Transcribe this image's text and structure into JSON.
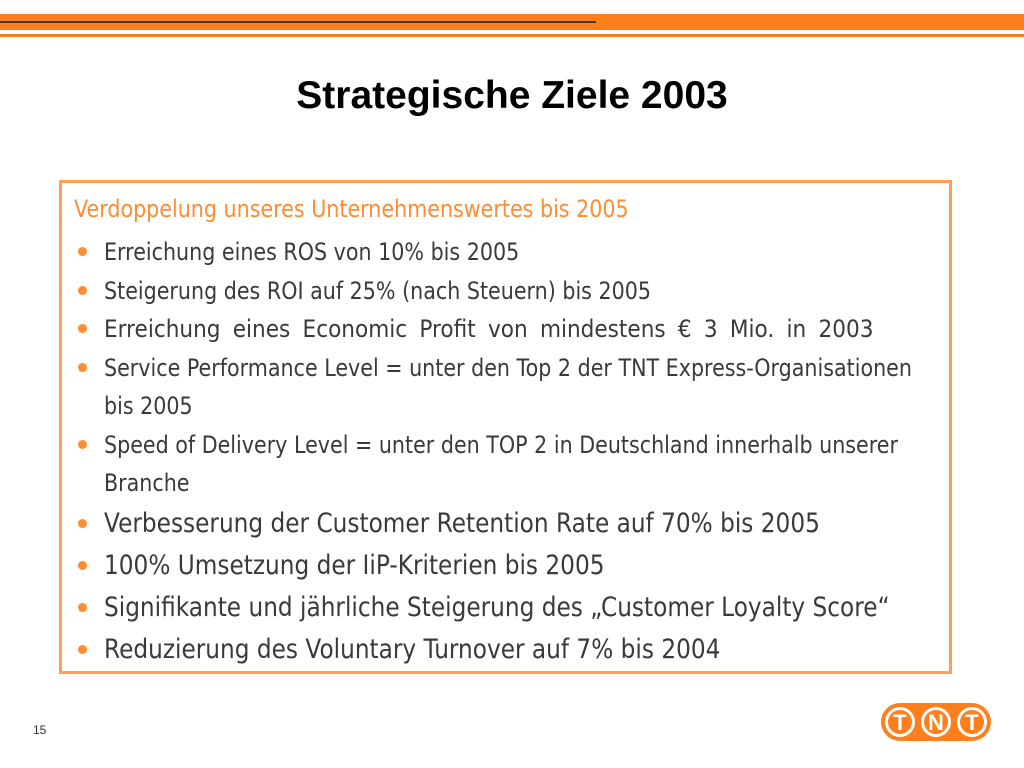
{
  "slide": {
    "title": "Strategische Ziele 2003",
    "page_number": "15"
  },
  "box": {
    "heading": "Verdoppelung unseres Unternehmenswertes bis 2005",
    "bullets": [
      {
        "line1": "Erreichung eines ROS von 10% bis 2005"
      },
      {
        "line1": "Steigerung des ROI auf 25% (nach Steuern) bis 2005"
      },
      {
        "line1": "Erreichung eines Economic Profit von mindestens € 3 Mio. in 2003"
      },
      {
        "line1": "Service Performance Level = unter den Top 2 der TNT Express-Organisationen",
        "line2": "bis 2005"
      },
      {
        "line1": "Speed of Delivery  Level = unter den TOP 2 in Deutschland innerhalb unserer",
        "line2": "Branche"
      },
      {
        "line1": "Verbesserung der Customer Retention Rate auf 70% bis 2005"
      },
      {
        "line1": "100% Umsetzung der IiP-Kriterien bis 2005"
      },
      {
        "line1": "Signifikante und jährliche Steigerung des „Customer Loyalty Score“"
      },
      {
        "line1": "Reduzierung des Voluntary Turnover auf 7% bis 2004"
      }
    ]
  },
  "logo": {
    "letters": [
      "T",
      "N",
      "T"
    ],
    "icon": "tnt-logo"
  },
  "colors": {
    "accent_orange": "#ff7f1f",
    "box_border": "#ff9f50",
    "heading_orange": "#ff8c32",
    "body_text": "#3a3a3a"
  }
}
